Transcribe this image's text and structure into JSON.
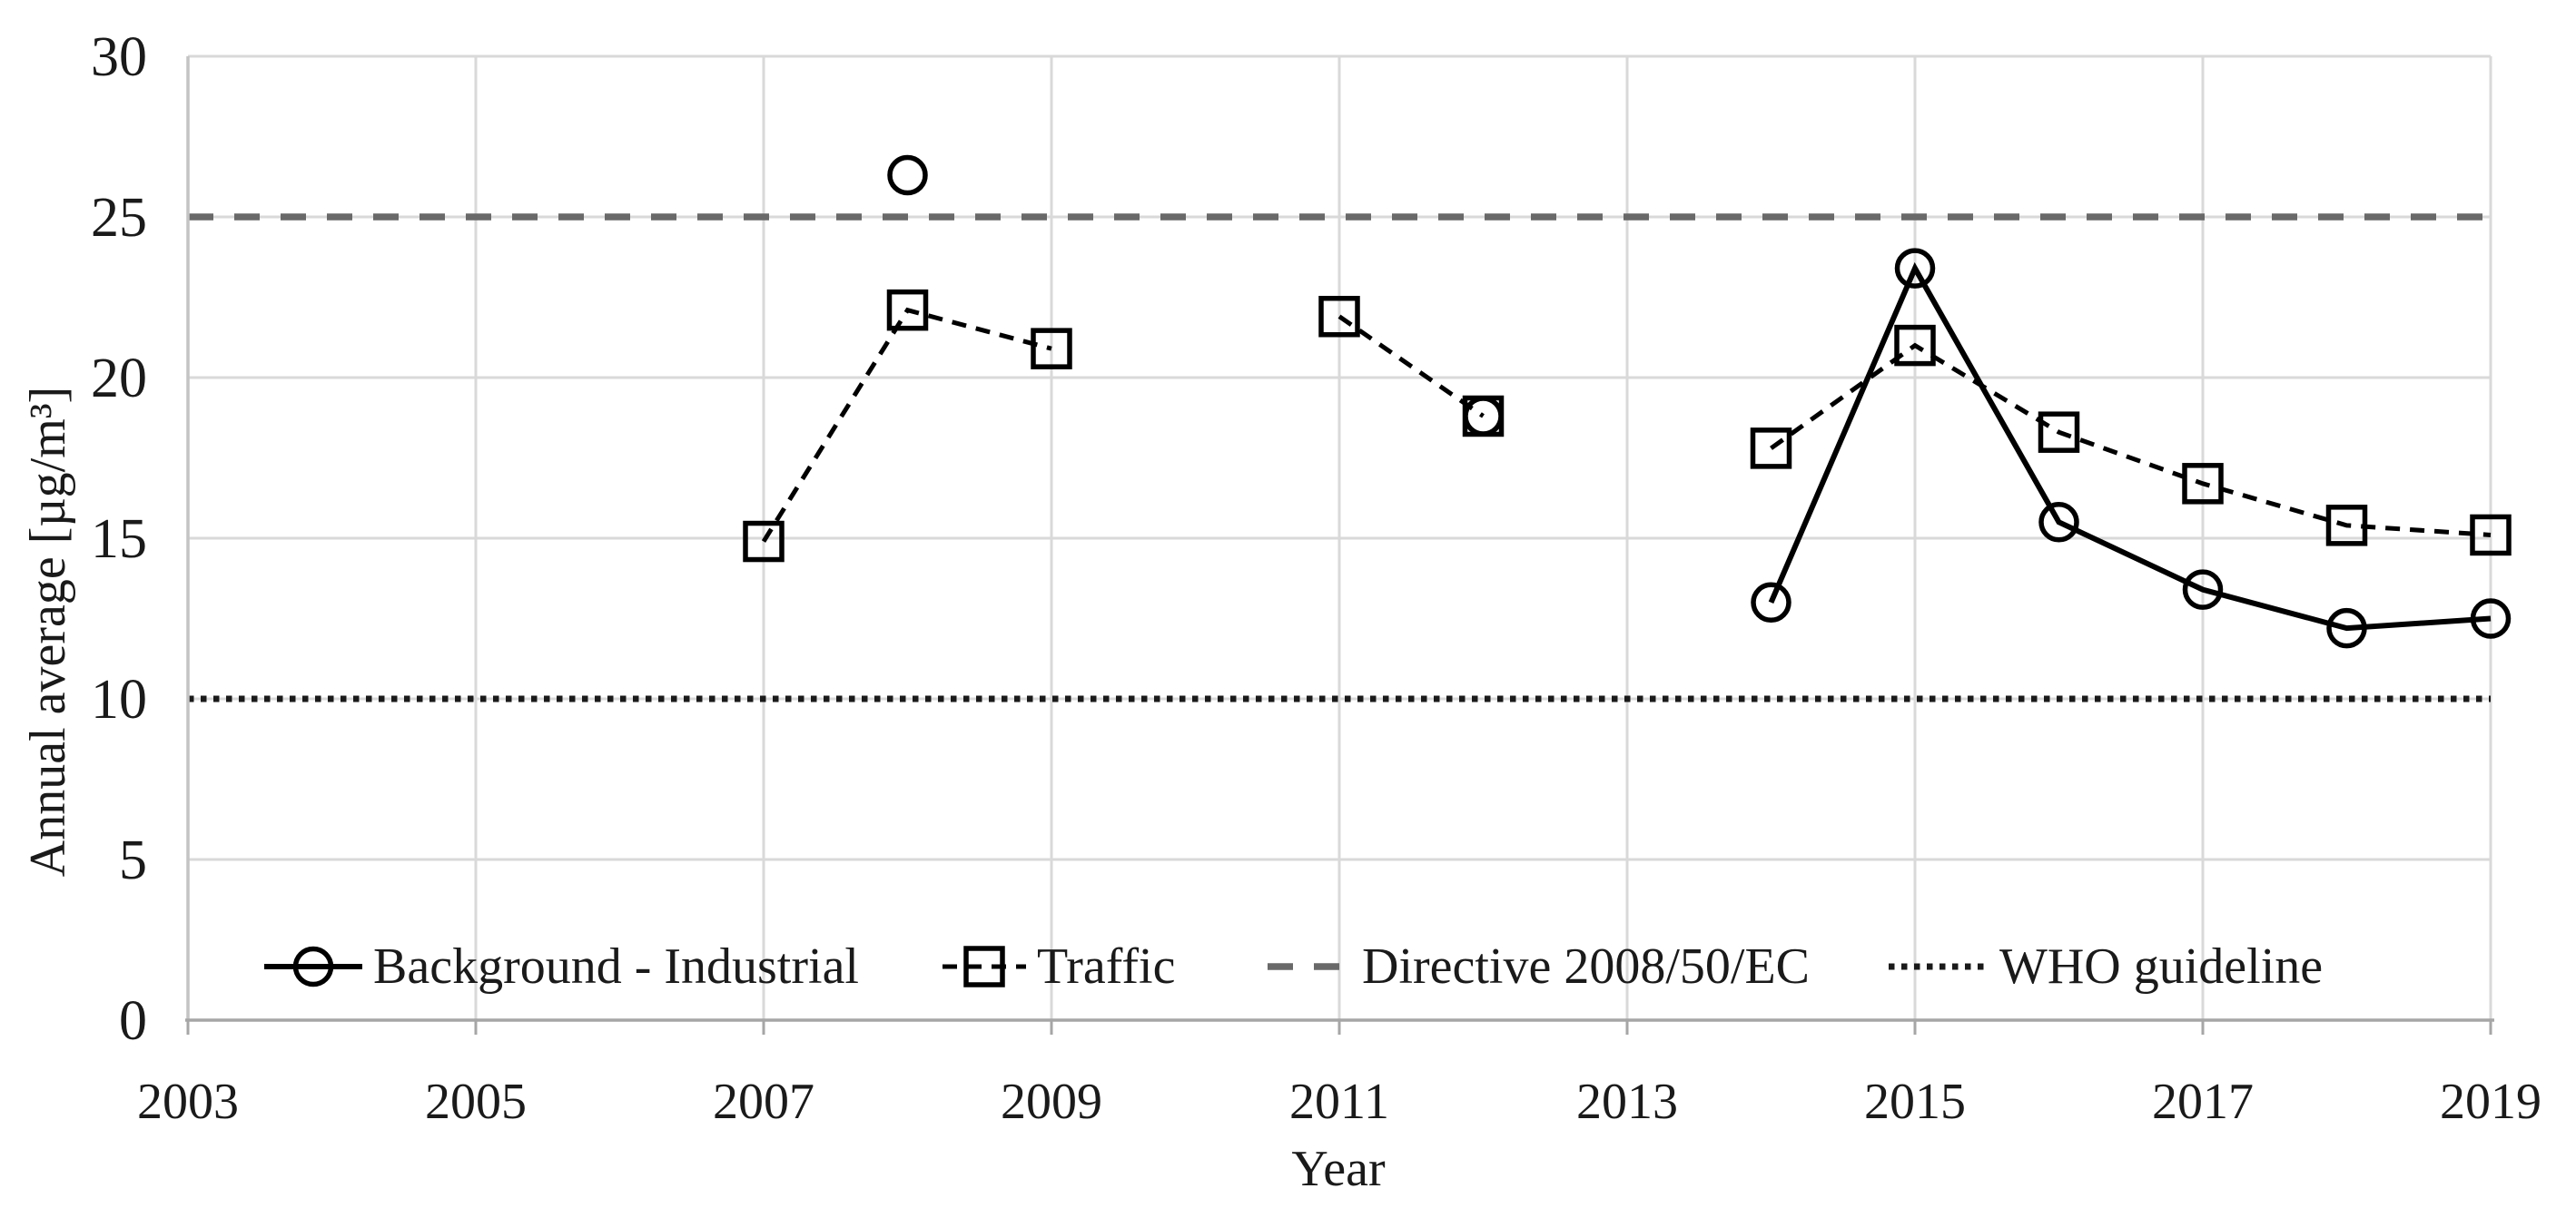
{
  "chart_data": {
    "type": "line",
    "title": "",
    "xlabel": "Year",
    "ylabel": "Annual average [µg/m³]",
    "xlim": [
      2003,
      2019
    ],
    "ylim": [
      0,
      30
    ],
    "x_ticks": [
      2003,
      2005,
      2007,
      2009,
      2011,
      2013,
      2015,
      2017,
      2019
    ],
    "y_ticks": [
      0,
      5,
      10,
      15,
      20,
      25,
      30
    ],
    "grid": true,
    "legend_position": "bottom-inside",
    "series": [
      {
        "name": "Background - Industrial",
        "kind": "line",
        "marker": "circle",
        "dash": "solid",
        "color": "#000000",
        "segments": [
          [
            [
              2008,
              26.3
            ]
          ],
          [
            [
              2012,
              18.8
            ]
          ],
          [
            [
              2014,
              13.0
            ],
            [
              2015,
              23.4
            ],
            [
              2016,
              15.5
            ],
            [
              2017,
              13.4
            ],
            [
              2018,
              12.2
            ],
            [
              2019,
              12.5
            ]
          ]
        ]
      },
      {
        "name": "Traffic",
        "kind": "line",
        "marker": "square",
        "dash": "dashed",
        "color": "#000000",
        "segments": [
          [
            [
              2007,
              14.9
            ],
            [
              2008,
              22.1
            ],
            [
              2009,
              20.9
            ]
          ],
          [
            [
              2011,
              21.9
            ],
            [
              2012,
              18.8
            ]
          ],
          [
            [
              2014,
              17.8
            ],
            [
              2015,
              21.0
            ],
            [
              2016,
              18.3
            ],
            [
              2017,
              16.7
            ],
            [
              2018,
              15.4
            ],
            [
              2019,
              15.1
            ]
          ]
        ]
      },
      {
        "name": "Directive 2008/50/EC",
        "kind": "hline",
        "value": 25,
        "marker": "none",
        "dash": "long-dash",
        "color": "#696969"
      },
      {
        "name": "WHO guideline",
        "kind": "hline",
        "value": 10,
        "marker": "none",
        "dash": "dotted",
        "color": "#1a1a1a"
      }
    ]
  },
  "colors": {
    "gridline": "#d9d9d9",
    "axis_y": "#c4c4c4",
    "axis_x": "#a6a6a6",
    "text": "#1a1a1a"
  }
}
